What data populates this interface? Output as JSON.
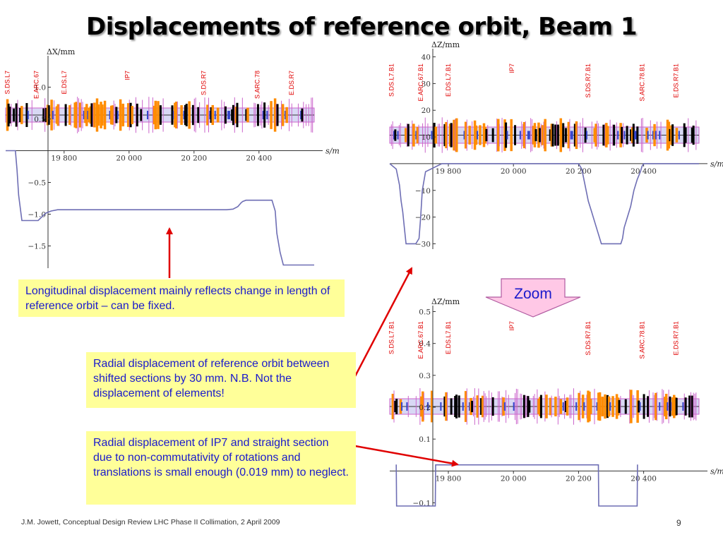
{
  "title": "Displacements of reference orbit, Beam 1",
  "footer": "J.M. Jowett,  Conceptual Design Review LHC Phase II Collimation, 2 April 2009",
  "page_number": "9",
  "zoom_label": "Zoom",
  "callouts": {
    "longitudinal": "Longitudinal displacement mainly reflects change in length of reference orbit – can be fixed.",
    "radial": "Radial displacement of reference orbit between shifted sections by 30 mm. N.B.  Not the displacement of elements!",
    "ip7": "Radial displacement of IP7 and straight section due to non-commutativity of rotations and translations is small enough (0.019 mm) to neglect."
  },
  "colors": {
    "callout_bg": "#ffff99",
    "callout_text": "#1a1acc",
    "arrow": "#e00000",
    "curve": "#6e6eb4",
    "zoom_arrow_fill": "#ffc8e6",
    "label_red": "#e00000",
    "magnet_orange": "#ff8c00",
    "magnet_black": "#000000",
    "magnet_violet": "#cc66cc",
    "magnet_blue": "#3344cc"
  },
  "chart_data": [
    {
      "type": "line",
      "ylabel": "ΔX/mm",
      "xlabel": "s/m",
      "xlim": [
        19620,
        20570
      ],
      "ylim": [
        -1.85,
        1.45
      ],
      "xticks": [
        19800,
        20000,
        20200,
        20400
      ],
      "xtick_labels": [
        "19 800",
        "20 000",
        "20 200",
        "20 400"
      ],
      "yticks": [
        1.0,
        0.5,
        -0.5,
        -1.0,
        -1.5
      ],
      "ytick_labels": [
        "1.0",
        "0.5",
        "−0.5",
        "−1.0",
        "−1.5"
      ],
      "section_labels": [
        {
          "text": "S.DS.L7",
          "s": 19625
        },
        {
          "text": "E.ARC.67",
          "s": 19715
        },
        {
          "text": "E.DS.L7",
          "s": 19800
        },
        {
          "text": "IP7",
          "s": 19995
        },
        {
          "text": "S.DS.R7",
          "s": 20230
        },
        {
          "text": "S.ARC.78",
          "s": 20395
        },
        {
          "text": "E.DS.R7",
          "s": 20500
        }
      ],
      "series": [
        {
          "x": [
            19620,
            19650,
            19655,
            19660,
            19665,
            19670,
            19700,
            19720,
            19740,
            19745,
            19760,
            19780,
            19790,
            20100,
            20200,
            20300,
            20320,
            20335,
            20340,
            20345,
            20350,
            20360,
            20420,
            20440,
            20450,
            20455,
            20465,
            20475,
            20570
          ],
          "y": [
            0.0,
            0.0,
            -0.3,
            -0.7,
            -0.9,
            -1.1,
            -1.1,
            -1.1,
            -1.0,
            -0.98,
            -0.95,
            -0.93,
            -0.93,
            -0.93,
            -0.93,
            -0.93,
            -0.92,
            -0.88,
            -0.85,
            -0.82,
            -0.8,
            -0.78,
            -0.78,
            -0.78,
            -0.95,
            -1.3,
            -1.6,
            -1.8,
            -1.8
          ]
        }
      ]
    },
    {
      "type": "line",
      "ylabel": "ΔZ/mm",
      "xlabel": "s/m",
      "xlim": [
        19620,
        20570
      ],
      "ylim": [
        -32,
        42
      ],
      "xticks": [
        19800,
        20000,
        20200,
        20400
      ],
      "xtick_labels": [
        "19 800",
        "20 000",
        "20 200",
        "20 400"
      ],
      "yticks": [
        40,
        30,
        20,
        10,
        -10,
        -20,
        -30
      ],
      "ytick_labels": [
        "40",
        "30",
        "20",
        "10",
        "−10",
        "−20",
        "−30"
      ],
      "section_labels": [
        {
          "text": "S.DS.L7.B1",
          "s": 19625
        },
        {
          "text": "E.ARC.67.B1",
          "s": 19715
        },
        {
          "text": "E.DS.L7.B1",
          "s": 19800
        },
        {
          "text": "IP7",
          "s": 19995
        },
        {
          "text": "S.DS.R7.B1",
          "s": 20230
        },
        {
          "text": "S.ARC.78.B1",
          "s": 20395
        },
        {
          "text": "E.DS.R7.B1",
          "s": 20500
        }
      ],
      "series": [
        {
          "x": [
            19620,
            19640,
            19650,
            19655,
            19660,
            19665,
            19670,
            19680,
            19690,
            19700,
            19710,
            19715,
            19720,
            19730,
            19780,
            20200,
            20210,
            20215,
            20220,
            20230,
            20240,
            20250,
            20260,
            20270,
            20280,
            20330,
            20335,
            20340,
            20350,
            20360,
            20370,
            20380,
            20390,
            20395,
            20400,
            20570
          ],
          "y": [
            0,
            -2,
            -8,
            -14,
            -18,
            -24,
            -30,
            -30,
            -30,
            -30,
            -28,
            -20,
            -10,
            -3,
            0,
            0,
            -2,
            -5,
            -8,
            -14,
            -18,
            -22,
            -26,
            -30,
            -30,
            -30,
            -28,
            -24,
            -20,
            -16,
            -10,
            -6,
            -3,
            -1,
            0,
            0
          ]
        }
      ]
    },
    {
      "type": "line",
      "ylabel": "ΔZ/mm",
      "xlabel": "s/m",
      "xlim": [
        19620,
        20570
      ],
      "ylim": [
        -0.11,
        0.51
      ],
      "xticks": [
        19800,
        20000,
        20200,
        20400
      ],
      "xtick_labels": [
        "19 800",
        "20 000",
        "20 200",
        "20 400"
      ],
      "yticks": [
        0.5,
        0.4,
        0.3,
        0.2,
        0.1,
        -0.1
      ],
      "ytick_labels": [
        "0.5",
        "0.4",
        "0.3",
        "0.2",
        "0.1",
        "−0.1"
      ],
      "section_labels": [
        {
          "text": "S.DS.L7.B1",
          "s": 19625
        },
        {
          "text": "E.ARC.67.B1",
          "s": 19715
        },
        {
          "text": "E.DS.L7.B1",
          "s": 19800
        },
        {
          "text": "IP7",
          "s": 19995
        },
        {
          "text": "S.DS.R7.B1",
          "s": 20230
        },
        {
          "text": "S.ARC.78.B1",
          "s": 20395
        },
        {
          "text": "E.DS.R7.B1",
          "s": 20500
        }
      ],
      "series": [
        {
          "x": [
            19640,
            19641,
            19760,
            19761,
            19762,
            20260,
            20261,
            20262,
            20380,
            20381
          ],
          "y": [
            0.02,
            -0.11,
            -0.11,
            0.019,
            0.019,
            0.019,
            0.019,
            -0.11,
            -0.11,
            0.02
          ]
        }
      ]
    }
  ]
}
